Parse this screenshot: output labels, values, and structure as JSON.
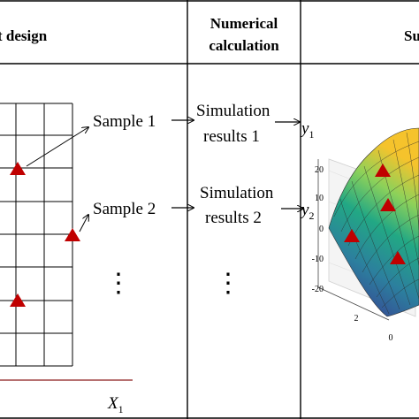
{
  "header": {
    "col1": "t design",
    "col2_line1": "Numerical",
    "col2_line2": "calculation",
    "col3": "Su"
  },
  "design": {
    "sample1": "Sample 1",
    "sample2": "Sample 2",
    "dots": "⋮",
    "axis_x": "X",
    "axis_x_sub": "1"
  },
  "simulation": {
    "res1_line1": "Simulation",
    "res1_line2": "results  1",
    "res2_line1": "Simulation",
    "res2_line2": "results  2",
    "dots": "⋮"
  },
  "surface": {
    "y1": "y",
    "y1_sub": "1",
    "y2": "y",
    "y2_sub": "2",
    "z_ticks": [
      "20",
      "10",
      "0",
      "-10",
      "-20"
    ],
    "x_ticks": [
      "2",
      "0"
    ]
  },
  "colors": {
    "marker": "#c00000",
    "axis_line": "#8b1a1a",
    "surface_low": "#3b2d8f",
    "surface_mid": "#22a884",
    "surface_high": "#f5c32c"
  }
}
